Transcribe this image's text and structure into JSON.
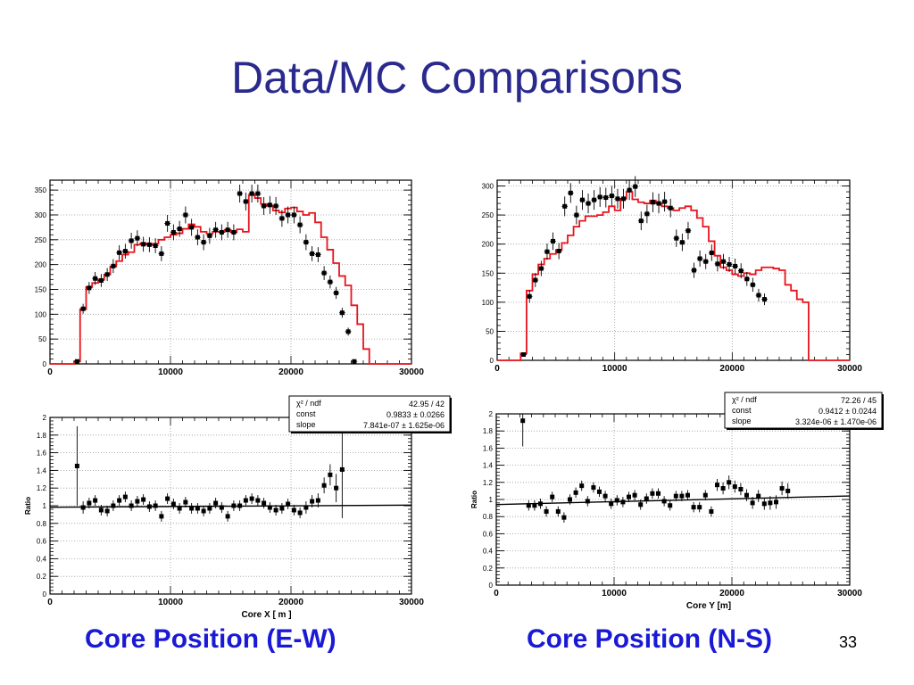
{
  "slide": {
    "title": "Data/MC Comparisons",
    "caption_left": "Core Position (E-W)",
    "caption_right": "Core Position (N-S)",
    "page_number": "33"
  },
  "colors": {
    "title": "#2a2a8e",
    "caption": "#1a1ad6",
    "mc": "#e8141c",
    "data": "#000000",
    "fit": "#000000"
  },
  "chart_data": [
    {
      "type": "histogram",
      "title": "",
      "xlabel": "",
      "ylabel": "",
      "xlim": [
        0,
        30000
      ],
      "ylim": [
        0,
        370
      ],
      "x_ticks": [
        "0",
        "10000",
        "20000",
        "30000"
      ],
      "y_ticks": [
        "0",
        "50",
        "100",
        "150",
        "200",
        "250",
        "300",
        "350"
      ],
      "grid": true,
      "bin_edges_start": 0,
      "bin_width": 500,
      "series": [
        {
          "kind": "mc-histogram",
          "values": [
            0,
            0,
            0,
            0,
            5,
            110,
            155,
            163,
            170,
            180,
            196,
            207,
            220,
            225,
            240,
            243,
            240,
            242,
            250,
            255,
            260,
            263,
            272,
            281,
            276,
            266,
            262,
            266,
            266,
            270,
            265,
            271,
            266,
            340,
            334,
            322,
            318,
            309,
            305,
            313,
            315,
            307,
            300,
            304,
            285,
            255,
            230,
            203,
            177,
            158,
            118,
            80,
            30,
            0,
            0,
            0,
            0,
            0,
            0,
            0
          ]
        },
        {
          "kind": "data-points",
          "values": [
            0,
            0,
            0,
            0,
            5,
            111,
            153,
            172,
            168,
            180,
            197,
            224,
            227,
            248,
            253,
            241,
            240,
            238,
            222,
            283,
            265,
            272,
            300,
            275,
            255,
            245,
            258,
            270,
            265,
            270,
            265,
            343,
            327,
            343,
            343,
            318,
            320,
            318,
            293,
            300,
            300,
            280,
            245,
            222,
            220,
            183,
            165,
            143,
            103,
            65,
            5,
            0,
            0,
            0,
            0,
            0,
            0,
            0,
            0,
            0
          ],
          "errors": [
            0,
            0,
            0,
            0,
            2,
            10,
            12,
            13,
            13,
            13,
            14,
            15,
            15,
            16,
            16,
            15,
            15,
            15,
            15,
            17,
            16,
            16,
            17,
            17,
            16,
            16,
            16,
            16,
            16,
            16,
            16,
            18,
            18,
            18,
            18,
            18,
            18,
            18,
            17,
            17,
            17,
            17,
            16,
            15,
            15,
            14,
            13,
            12,
            10,
            8,
            2,
            0,
            0,
            0,
            0,
            0,
            0,
            0,
            0,
            0
          ]
        }
      ]
    },
    {
      "type": "histogram",
      "title": "",
      "xlabel": "",
      "ylabel": "",
      "xlim": [
        0,
        30000
      ],
      "ylim": [
        0,
        310
      ],
      "x_ticks": [
        "0",
        "10000",
        "20000",
        "30000"
      ],
      "y_ticks": [
        "0",
        "50",
        "100",
        "150",
        "200",
        "250",
        "300"
      ],
      "grid": true,
      "bin_edges_start": 0,
      "bin_width": 500,
      "series": [
        {
          "kind": "mc-histogram",
          "values": [
            0,
            0,
            0,
            0,
            12,
            120,
            148,
            165,
            175,
            183,
            190,
            202,
            215,
            230,
            240,
            248,
            248,
            250,
            255,
            265,
            258,
            278,
            290,
            277,
            272,
            270,
            275,
            270,
            265,
            262,
            258,
            262,
            265,
            258,
            245,
            230,
            205,
            180,
            160,
            155,
            148,
            145,
            150,
            148,
            155,
            160,
            160,
            158,
            155,
            130,
            120,
            105,
            100,
            0,
            0,
            0,
            0,
            0,
            0,
            0
          ]
        },
        {
          "kind": "data-points",
          "values": [
            0,
            0,
            0,
            0,
            10,
            110,
            138,
            158,
            187,
            205,
            188,
            265,
            288,
            250,
            276,
            270,
            276,
            281,
            280,
            283,
            278,
            278,
            293,
            299,
            240,
            252,
            272,
            270,
            273,
            262,
            210,
            203,
            223,
            155,
            175,
            170,
            185,
            166,
            170,
            165,
            162,
            154,
            140,
            130,
            112,
            105,
            0,
            0,
            0,
            0,
            0,
            0,
            0,
            0,
            0,
            0,
            0,
            0,
            0,
            0
          ],
          "errors": [
            0,
            0,
            0,
            0,
            3,
            11,
            12,
            13,
            14,
            15,
            14,
            17,
            17,
            16,
            17,
            17,
            17,
            17,
            17,
            17,
            17,
            17,
            17,
            18,
            16,
            16,
            17,
            17,
            17,
            16,
            15,
            15,
            15,
            13,
            14,
            13,
            14,
            13,
            13,
            13,
            13,
            13,
            12,
            12,
            11,
            10,
            0,
            0,
            0,
            0,
            0,
            0,
            0,
            0,
            0,
            0,
            0,
            0,
            0,
            0
          ]
        }
      ]
    },
    {
      "type": "scatter",
      "title": "",
      "xlabel": "Core X [ m ]",
      "ylabel": "Ratio",
      "xlim": [
        0,
        30000
      ],
      "ylim": [
        0,
        2
      ],
      "x_ticks": [
        "0",
        "10000",
        "20000",
        "30000"
      ],
      "y_ticks": [
        "0",
        "0.2",
        "0.4",
        "0.6",
        "0.8",
        "1",
        "1.2",
        "1.4",
        "1.6",
        "1.8",
        "2"
      ],
      "grid": true,
      "points_x_start": 2250,
      "points_x_step": 500,
      "values": [
        1.45,
        0.98,
        1.03,
        1.06,
        0.95,
        0.94,
        1.0,
        1.06,
        1.1,
        1.0,
        1.05,
        1.07,
        0.99,
        1.0,
        0.88,
        1.08,
        1.02,
        0.97,
        1.04,
        0.97,
        0.97,
        0.94,
        0.97,
        1.03,
        0.98,
        0.88,
        1.0,
        1.0,
        1.06,
        1.08,
        1.06,
        1.03,
        0.98,
        0.95,
        0.97,
        1.02,
        0.95,
        0.92,
        0.98,
        1.05,
        1.06,
        1.23,
        1.35,
        1.2,
        1.41
      ],
      "errors": [
        0.45,
        0.07,
        0.06,
        0.06,
        0.06,
        0.06,
        0.06,
        0.06,
        0.06,
        0.06,
        0.06,
        0.06,
        0.06,
        0.06,
        0.06,
        0.06,
        0.06,
        0.06,
        0.06,
        0.06,
        0.06,
        0.06,
        0.06,
        0.06,
        0.06,
        0.06,
        0.06,
        0.06,
        0.06,
        0.06,
        0.06,
        0.06,
        0.06,
        0.06,
        0.06,
        0.06,
        0.06,
        0.06,
        0.07,
        0.07,
        0.08,
        0.09,
        0.12,
        0.16,
        0.55
      ],
      "fit_line": [
        0.9833,
        7.841e-07
      ],
      "stats": [
        {
          "label": "χ² / ndf",
          "value": "42.95 / 42"
        },
        {
          "label": "const",
          "value": "0.9833 ± 0.0266"
        },
        {
          "label": "slope",
          "value": "7.841e-07 ± 1.625e-06"
        }
      ]
    },
    {
      "type": "scatter",
      "title": "",
      "xlabel": "Core Y [m]",
      "ylabel": "Ratio",
      "xlim": [
        0,
        30000
      ],
      "ylim": [
        0,
        2
      ],
      "x_ticks": [
        "0",
        "10000",
        "20000",
        "30000"
      ],
      "y_ticks": [
        "0",
        "0.2",
        "0.4",
        "0.6",
        "0.8",
        "1",
        "1.2",
        "1.4",
        "1.6",
        "1.8",
        "2"
      ],
      "grid": true,
      "points_x_start": 2250,
      "points_x_step": 500,
      "values": [
        1.92,
        0.93,
        0.93,
        0.95,
        0.86,
        1.03,
        0.86,
        0.79,
        1.0,
        1.08,
        1.16,
        0.98,
        1.14,
        1.09,
        1.04,
        0.95,
        0.99,
        0.97,
        1.03,
        1.05,
        0.94,
        1.01,
        1.07,
        1.07,
        0.98,
        0.93,
        1.04,
        1.04,
        1.05,
        0.91,
        0.91,
        1.05,
        0.86,
        1.17,
        1.13,
        1.2,
        1.15,
        1.12,
        1.05,
        0.96,
        1.04,
        0.95,
        0.96,
        0.97,
        1.13,
        1.1
      ],
      "errors": [
        0.3,
        0.06,
        0.06,
        0.06,
        0.06,
        0.06,
        0.06,
        0.06,
        0.06,
        0.06,
        0.06,
        0.06,
        0.06,
        0.06,
        0.06,
        0.06,
        0.06,
        0.06,
        0.06,
        0.06,
        0.06,
        0.06,
        0.06,
        0.06,
        0.06,
        0.06,
        0.06,
        0.06,
        0.06,
        0.06,
        0.06,
        0.06,
        0.06,
        0.07,
        0.07,
        0.08,
        0.07,
        0.07,
        0.07,
        0.07,
        0.07,
        0.07,
        0.08,
        0.08,
        0.08,
        0.09
      ],
      "fit_line": [
        0.9412,
        3.324e-06
      ],
      "stats": [
        {
          "label": "χ² / ndf",
          "value": "72.26 / 45"
        },
        {
          "label": "const",
          "value": "0.9412 ± 0.0244"
        },
        {
          "label": "slope",
          "value": "3.324e-06 ± 1.470e-06"
        }
      ]
    }
  ]
}
